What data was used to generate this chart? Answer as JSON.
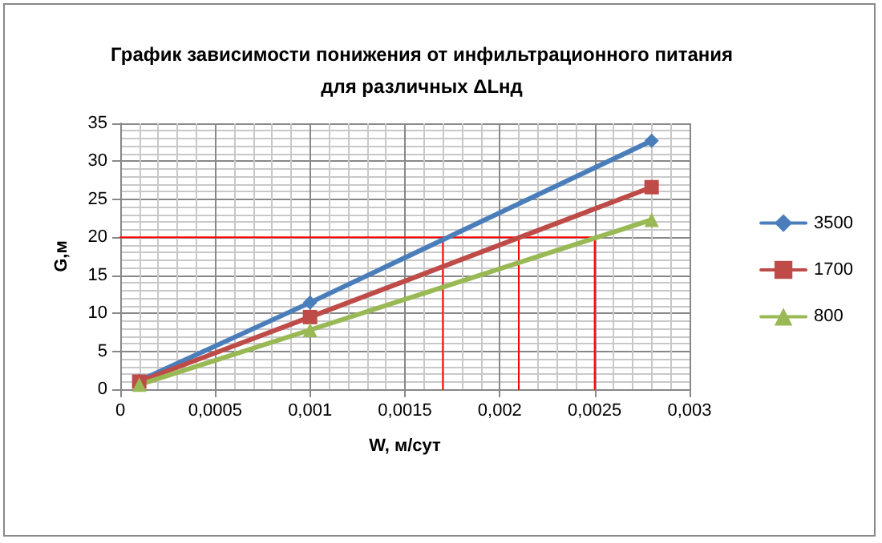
{
  "chart_data": {
    "type": "line",
    "title": "График зависимости понижения от инфильтрационного питания для различных ΔLнд",
    "xlabel": "W, м/сут",
    "ylabel": "G,м",
    "x": [
      0.0001,
      0.001,
      0.0028
    ],
    "series": [
      {
        "name": "3500",
        "color": "#4a7ebb",
        "marker": "diamond",
        "values": [
          1.1,
          11.4,
          32.7
        ]
      },
      {
        "name": "1700",
        "color": "#be4b48",
        "marker": "square",
        "values": [
          1.0,
          9.5,
          26.6
        ]
      },
      {
        "name": "800",
        "color": "#98b954",
        "marker": "triangle",
        "values": [
          0.6,
          7.8,
          22.3
        ]
      },
      {
        "color": "#ff0000",
        "marker": "none",
        "x": [
          0,
          0.0025
        ],
        "values": [
          20,
          20
        ]
      },
      {
        "color": "#ff0000",
        "marker": "none",
        "x": [
          0.0017,
          0.0017
        ],
        "values": [
          0,
          20
        ]
      },
      {
        "color": "#ff0000",
        "marker": "none",
        "x": [
          0.0021,
          0.0021
        ],
        "values": [
          0,
          20
        ]
      },
      {
        "color": "#ff0000",
        "marker": "none",
        "x": [
          0.0025,
          0.0025
        ],
        "values": [
          0,
          20
        ]
      }
    ],
    "xlim": [
      0,
      0.003
    ],
    "xticks": [
      {
        "value": 0,
        "label": "0"
      },
      {
        "value": 0.0005,
        "label": "0,0005"
      },
      {
        "value": 0.001,
        "label": "0,001"
      },
      {
        "value": 0.0015,
        "label": "0,0015"
      },
      {
        "value": 0.002,
        "label": "0,002"
      },
      {
        "value": 0.0025,
        "label": "0,0025"
      },
      {
        "value": 0.003,
        "label": "0,003"
      }
    ],
    "ylim": [
      0,
      35
    ],
    "yticks": [
      0,
      5,
      10,
      15,
      20,
      25,
      30,
      35
    ],
    "grid": true,
    "legend": "right",
    "line_style": "solid"
  }
}
